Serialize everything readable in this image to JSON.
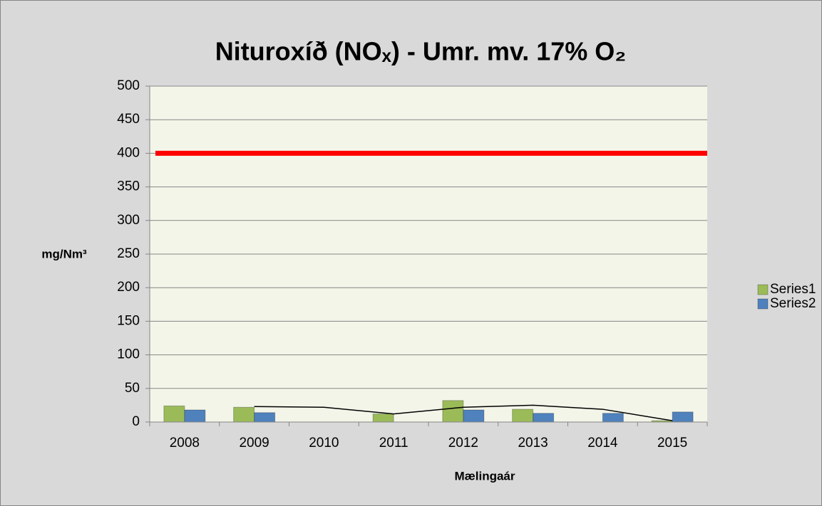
{
  "chart_data": {
    "type": "bar",
    "title": "Nituroxíð (NOₓ) - Umr. mv. 17% O₂",
    "y_label": "mg/Nm³",
    "x_label": "Mælingaár",
    "categories": [
      "2008",
      "2009",
      "2010",
      "2011",
      "2012",
      "2013",
      "2014",
      "2015"
    ],
    "series": [
      {
        "name": "Series1",
        "color": "#9bbb59",
        "values": [
          24,
          22,
          null,
          12,
          32,
          19,
          null,
          2
        ]
      },
      {
        "name": "Series2",
        "color": "#4f81bd",
        "values": [
          18,
          14,
          null,
          null,
          18,
          13,
          13,
          15
        ]
      },
      {
        "type": "line",
        "color": "#000000",
        "values": [
          null,
          23,
          22,
          12,
          22,
          25,
          19,
          2
        ]
      }
    ],
    "reference_lines": [
      {
        "value": 400,
        "color": "#ff0000"
      }
    ],
    "ylim": [
      0,
      500
    ],
    "yticks": [
      0,
      50,
      100,
      150,
      200,
      250,
      300,
      350,
      400,
      450,
      500
    ],
    "grid": true,
    "legend": "right"
  }
}
